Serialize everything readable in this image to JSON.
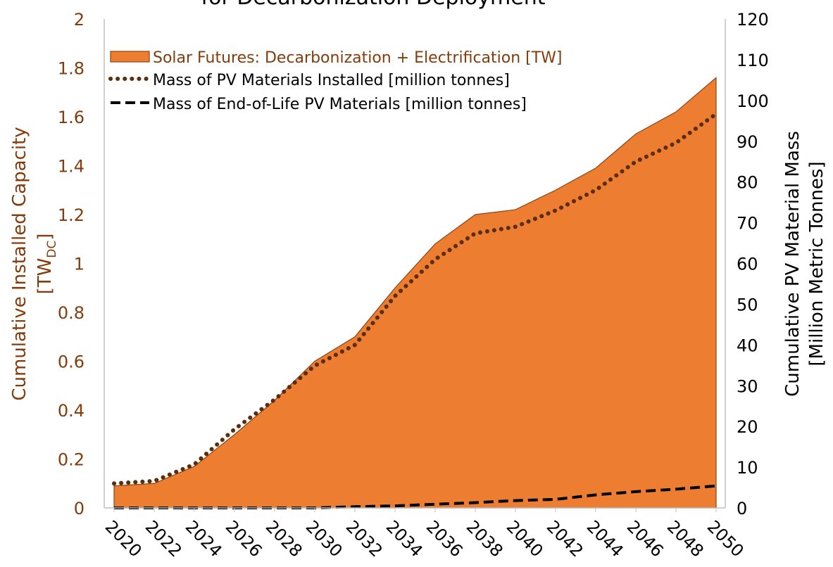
{
  "chart_data": {
    "type": "area_line",
    "title": "for Decarbonization Deployment",
    "ylabel": "Cumulative Installed Capacity",
    "ylabel_unit": "[TW",
    "ylabel_sub": "DC",
    "ylabel_unit_end": "]",
    "y2label": [
      "Cumulative PV Material Mass",
      "[Million Metric Tonnes]"
    ],
    "x": [
      2020,
      2022,
      2024,
      2026,
      2028,
      2030,
      2032,
      2034,
      2036,
      2038,
      2040,
      2042,
      2044,
      2046,
      2048,
      2050
    ],
    "xlim": [
      2020,
      2050
    ],
    "xticks": [
      2020,
      2022,
      2024,
      2026,
      2028,
      2030,
      2032,
      2034,
      2036,
      2038,
      2040,
      2042,
      2044,
      2046,
      2048,
      2050
    ],
    "ylim": [
      0,
      2
    ],
    "yticks": [
      0,
      0.2,
      0.4,
      0.6,
      0.8,
      1,
      1.2,
      1.4,
      1.6,
      1.8,
      2
    ],
    "y2lim": [
      0,
      120
    ],
    "y2ticks": [
      0,
      10,
      20,
      30,
      40,
      50,
      60,
      70,
      80,
      90,
      100,
      110,
      120
    ],
    "grid": false,
    "legend": "upper left",
    "series": [
      {
        "name": "Solar Futures: Decarbonization + Electrification [TW]",
        "kind": "area",
        "color": "#ed7d31",
        "edge_color": "#8b4513",
        "values": [
          0.09,
          0.1,
          0.17,
          0.3,
          0.44,
          0.6,
          0.7,
          0.9,
          1.08,
          1.2,
          1.22,
          1.3,
          1.39,
          1.53,
          1.62,
          1.76
        ]
      },
      {
        "name": "Mass of PV Materials Installed [million tonnes]",
        "kind": "dotted",
        "color": "#5a2d0c",
        "axis": "y2",
        "values": [
          6,
          6.6,
          10.7,
          19.3,
          26.6,
          34.9,
          40,
          52,
          61,
          67.4,
          69,
          73,
          78,
          85,
          89.6,
          96.7
        ]
      },
      {
        "name": "Mass of End-of-Life PV Materials [million tonnes]",
        "kind": "dashed",
        "color": "#000000",
        "axis": "y2",
        "values": [
          0,
          0,
          0,
          0,
          0,
          0,
          0.3,
          0.5,
          0.9,
          1.3,
          1.8,
          2.1,
          3.2,
          4.0,
          4.6,
          5.4
        ]
      }
    ]
  }
}
